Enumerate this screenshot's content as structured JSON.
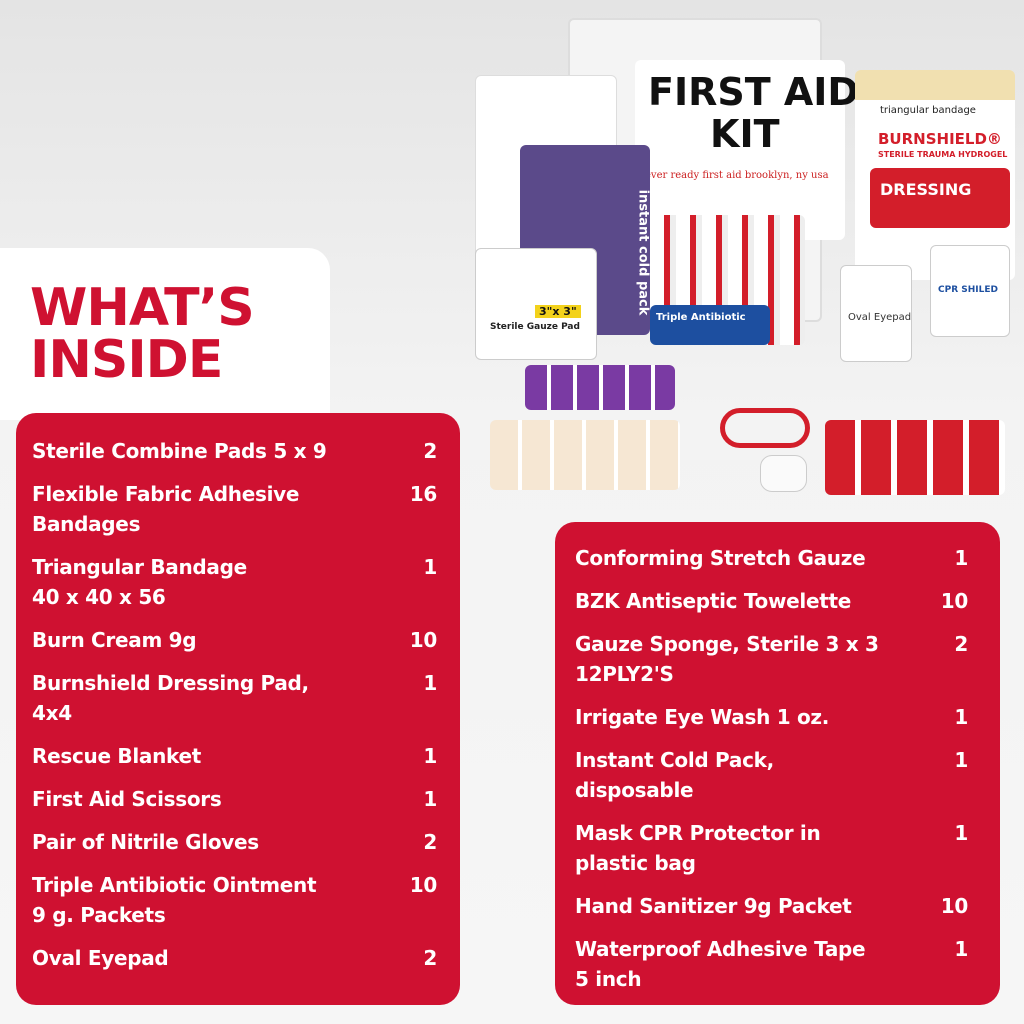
{
  "heading": {
    "line1": "WHAT’S",
    "line2": "INSIDE"
  },
  "photo": {
    "kit_label": [
      "FIRST AID",
      "KIT"
    ],
    "kit_brand": "ever ready first aid   brooklyn, ny   usa",
    "burnshield": "BURNSHIELD®",
    "burnshield_sub": "STERILE TRAUMA HYDROGEL",
    "dressing": "DRESSING",
    "triangular": "triangular bandage",
    "antibiotic": "Triple Antibiotic",
    "eyepad": "Oval Eyepad",
    "cpr": "CPR SHILED",
    "gauze": "Sterile Gauze Pad",
    "gauze_size": "3\"x 3\"",
    "cold_pack": "instant cold pack"
  },
  "left_list": [
    {
      "lines": [
        "Sterile Combine Pads 5 x 9"
      ],
      "qty": 2
    },
    {
      "lines": [
        "Flexible Fabric Adhesive",
        "Bandages"
      ],
      "qty": 16
    },
    {
      "lines": [
        "Triangular Bandage",
        "40 x 40 x 56"
      ],
      "qty": 1
    },
    {
      "lines": [
        "Burn Cream 9g"
      ],
      "qty": 10
    },
    {
      "lines": [
        "Burnshield Dressing Pad,",
        "4x4"
      ],
      "qty": 1
    },
    {
      "lines": [
        "Rescue Blanket"
      ],
      "qty": 1
    },
    {
      "lines": [
        "First Aid Scissors"
      ],
      "qty": 1
    },
    {
      "lines": [
        "Pair of Nitrile Gloves"
      ],
      "qty": 2
    },
    {
      "lines": [
        "Triple Antibiotic Ointment",
        "9 g. Packets"
      ],
      "qty": 10
    },
    {
      "lines": [
        "Oval Eyepad"
      ],
      "qty": 2
    }
  ],
  "right_list": [
    {
      "lines": [
        "Conforming Stretch Gauze"
      ],
      "qty": 1
    },
    {
      "lines": [
        "BZK Antiseptic Towelette"
      ],
      "qty": 10
    },
    {
      "lines": [
        "Gauze Sponge, Sterile 3 x 3",
        "12PLY2'S"
      ],
      "qty": 2
    },
    {
      "lines": [
        "Irrigate Eye Wash 1 oz."
      ],
      "qty": 1
    },
    {
      "lines": [
        "Instant Cold Pack,",
        "disposable"
      ],
      "qty": 1
    },
    {
      "lines": [
        "Mask CPR Protector in",
        "plastic bag"
      ],
      "qty": 1
    },
    {
      "lines": [
        "Hand Sanitizer 9g Packet"
      ],
      "qty": 10
    },
    {
      "lines": [
        "Waterproof Adhesive Tape",
        "5 inch"
      ],
      "qty": 1
    }
  ]
}
